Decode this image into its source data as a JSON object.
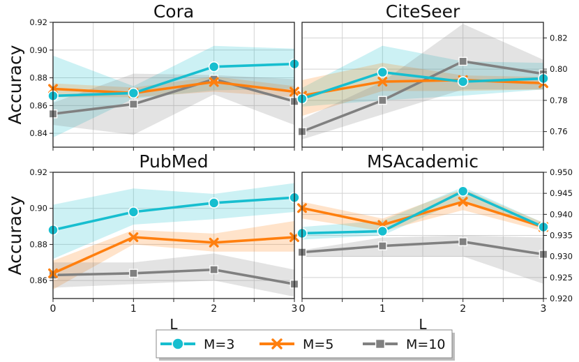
{
  "legend": {
    "items": [
      {
        "label": "M=3",
        "color": "#17becf",
        "marker": "circle"
      },
      {
        "label": "M=5",
        "color": "#ff7f0e",
        "marker": "x"
      },
      {
        "label": "M=10",
        "color": "#808080",
        "marker": "square"
      }
    ]
  },
  "chart_data": [
    {
      "type": "line",
      "title": "Cora",
      "xlabel": "",
      "ylabel": "Accuracy",
      "x": [
        0,
        1,
        2,
        3
      ],
      "xlim": [
        0,
        3
      ],
      "ylim": [
        0.83,
        0.92
      ],
      "y_axis_side": "left",
      "yticks": [
        "0.84",
        "0.86",
        "0.88",
        "0.90",
        "0.92"
      ],
      "xticks": [],
      "series": [
        {
          "name": "M=3",
          "values": [
            0.867,
            0.869,
            0.888,
            0.89
          ],
          "lower": [
            0.837,
            0.865,
            0.871,
            0.872
          ],
          "upper": [
            0.896,
            0.874,
            0.903,
            0.901
          ]
        },
        {
          "name": "M=5",
          "values": [
            0.872,
            0.869,
            0.877,
            0.87
          ],
          "lower": [
            0.866,
            0.866,
            0.87,
            0.866
          ],
          "upper": [
            0.876,
            0.873,
            0.881,
            0.874
          ]
        },
        {
          "name": "M=10",
          "values": [
            0.854,
            0.861,
            0.879,
            0.863
          ],
          "lower": [
            0.846,
            0.839,
            0.868,
            0.846
          ],
          "upper": [
            0.862,
            0.883,
            0.882,
            0.879
          ]
        }
      ]
    },
    {
      "type": "line",
      "title": "CiteSeer",
      "xlabel": "",
      "ylabel": "",
      "x": [
        0,
        1,
        2,
        3
      ],
      "xlim": [
        0,
        3
      ],
      "ylim": [
        0.75,
        0.83
      ],
      "y_axis_side": "right",
      "yticks": [
        "0.76",
        "0.78",
        "0.80",
        "0.82"
      ],
      "xticks": [],
      "series": [
        {
          "name": "M=3",
          "values": [
            0.781,
            0.798,
            0.792,
            0.794
          ],
          "lower": [
            0.776,
            0.78,
            0.783,
            0.787
          ],
          "upper": [
            0.788,
            0.815,
            0.805,
            0.804
          ]
        },
        {
          "name": "M=5",
          "values": [
            0.783,
            0.792,
            0.793,
            0.791
          ],
          "lower": [
            0.77,
            0.786,
            0.786,
            0.787
          ],
          "upper": [
            0.793,
            0.804,
            0.796,
            0.795
          ]
        },
        {
          "name": "M=10",
          "values": [
            0.76,
            0.78,
            0.805,
            0.797
          ],
          "lower": [
            0.755,
            0.771,
            0.787,
            0.787
          ],
          "upper": [
            0.768,
            0.792,
            0.829,
            0.806
          ]
        }
      ]
    },
    {
      "type": "line",
      "title": "PubMed",
      "xlabel": "L",
      "ylabel": "Accuracy",
      "x": [
        0,
        1,
        2,
        3
      ],
      "xlim": [
        0,
        3
      ],
      "ylim": [
        0.85,
        0.92
      ],
      "y_axis_side": "left",
      "yticks": [
        "0.86",
        "0.88",
        "0.90",
        "0.92"
      ],
      "xticks": [
        "0",
        "1",
        "2",
        "3"
      ],
      "series": [
        {
          "name": "M=3",
          "values": [
            0.888,
            0.898,
            0.903,
            0.906
          ],
          "lower": [
            0.872,
            0.891,
            0.894,
            0.898
          ],
          "upper": [
            0.902,
            0.911,
            0.908,
            0.914
          ]
        },
        {
          "name": "M=5",
          "values": [
            0.864,
            0.884,
            0.881,
            0.884
          ],
          "lower": [
            0.855,
            0.88,
            0.876,
            0.876
          ],
          "upper": [
            0.871,
            0.888,
            0.886,
            0.893
          ]
        },
        {
          "name": "M=10",
          "values": [
            0.863,
            0.864,
            0.866,
            0.858
          ],
          "lower": [
            0.856,
            0.858,
            0.86,
            0.851
          ],
          "upper": [
            0.87,
            0.87,
            0.875,
            0.866
          ]
        }
      ]
    },
    {
      "type": "line",
      "title": "MSAcademic",
      "xlabel": "L",
      "ylabel": "",
      "x": [
        0,
        1,
        2,
        3
      ],
      "xlim": [
        0,
        3
      ],
      "ylim": [
        0.92,
        0.95
      ],
      "y_axis_side": "right",
      "yticks": [
        "0.920",
        "0.925",
        "0.930",
        "0.935",
        "0.940",
        "0.945",
        "0.950"
      ],
      "xticks": [
        "0",
        "1",
        "2",
        "3"
      ],
      "series": [
        {
          "name": "M=3",
          "values": [
            0.9355,
            0.936,
            0.9455,
            0.937
          ],
          "lower": [
            0.934,
            0.935,
            0.9435,
            0.9365
          ],
          "upper": [
            0.937,
            0.9385,
            0.9465,
            0.938
          ]
        },
        {
          "name": "M=5",
          "values": [
            0.9415,
            0.9375,
            0.943,
            0.937
          ],
          "lower": [
            0.939,
            0.936,
            0.941,
            0.936
          ],
          "upper": [
            0.943,
            0.939,
            0.946,
            0.938
          ]
        },
        {
          "name": "M=10",
          "values": [
            0.931,
            0.9325,
            0.9335,
            0.9305
          ],
          "lower": [
            0.93,
            0.93,
            0.93,
            0.9235
          ],
          "upper": [
            0.9315,
            0.9345,
            0.935,
            0.9345
          ]
        }
      ]
    }
  ]
}
